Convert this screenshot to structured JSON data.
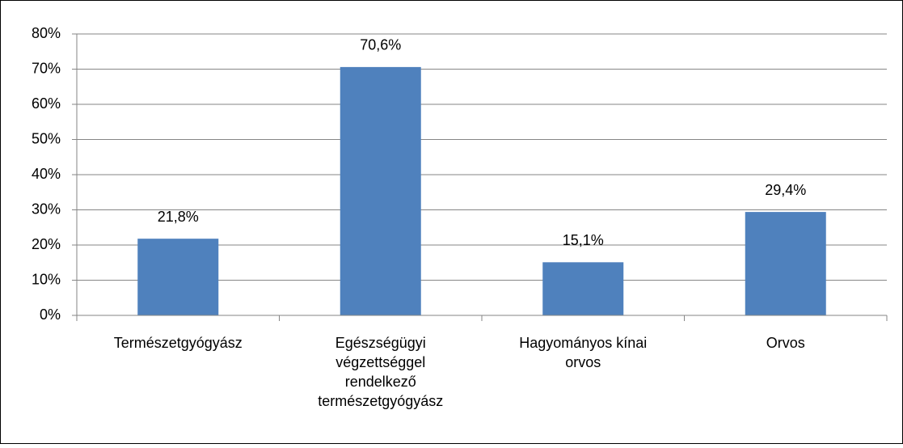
{
  "chart_data": {
    "type": "bar",
    "categories": [
      "Természetgyógyász",
      "Egészségügyi végzettséggel rendelkező természetgyógyász",
      "Hagyományos kínai orvos",
      "Orvos"
    ],
    "values": [
      21.8,
      70.6,
      15.1,
      29.4
    ],
    "value_labels": [
      "21,8%",
      "70,6%",
      "15,1%",
      "29,4%"
    ],
    "color": "#4f81bd",
    "ylim": [
      0,
      80
    ],
    "yticks": [
      {
        "value": 0,
        "label": "0%"
      },
      {
        "value": 10,
        "label": "10%"
      },
      {
        "value": 20,
        "label": "20%"
      },
      {
        "value": 30,
        "label": "30%"
      },
      {
        "value": 40,
        "label": "40%"
      },
      {
        "value": 50,
        "label": "50%"
      },
      {
        "value": 60,
        "label": "60%"
      },
      {
        "value": 70,
        "label": "70%"
      },
      {
        "value": 80,
        "label": "80%"
      }
    ],
    "grid": true
  }
}
